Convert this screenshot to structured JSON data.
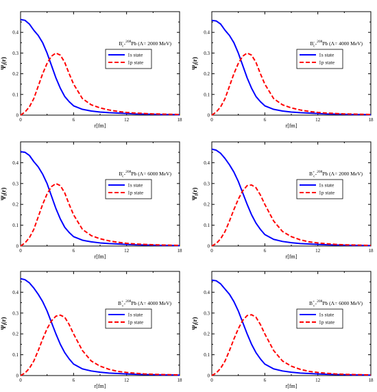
{
  "colors": {
    "s1": "#0000ff",
    "p1": "#ff0000",
    "axis": "#000000",
    "background": "#ffffff"
  },
  "chart_data": [
    {
      "type": "line",
      "title_parts": {
        "base": "B",
        "charge": "-",
        "sub": "c",
        "dash": "-",
        "mass": "208",
        "element": "Pb",
        "cutoff": "(Λ= 2000 MeV)"
      },
      "xlabel": "r[fm]",
      "ylabel": "Ψ_l(r)",
      "ylabel_main": "Ψ",
      "ylabel_sub": "l",
      "ylabel_arg": "(r)",
      "xlim": [
        0,
        18
      ],
      "ylim": [
        0,
        0.5
      ],
      "xticks": [
        0,
        6,
        12,
        18
      ],
      "yticks": [
        0,
        0.1,
        0.2,
        0.3,
        0.4
      ],
      "xtick_labels": [
        "0",
        "6",
        "12",
        "18"
      ],
      "ytick_labels": [
        "0",
        "0.1",
        "0.2",
        "0.3",
        "0.4"
      ],
      "legend": "upper-right",
      "series": [
        {
          "name": "1s state",
          "color": "#0000ff",
          "style": "solid",
          "x": [
            0,
            0.5,
            1,
            1.5,
            2,
            2.5,
            3,
            3.5,
            4,
            4.5,
            5,
            5.5,
            6,
            7,
            8,
            9,
            10,
            11,
            12,
            13,
            14,
            15,
            16,
            17,
            18
          ],
          "y": [
            0.462,
            0.458,
            0.44,
            0.41,
            0.385,
            0.35,
            0.3,
            0.24,
            0.18,
            0.13,
            0.09,
            0.065,
            0.045,
            0.028,
            0.02,
            0.015,
            0.012,
            0.01,
            0.008,
            0.006,
            0.005,
            0.004,
            0.003,
            0.003,
            0.002
          ]
        },
        {
          "name": "1p state",
          "color": "#ff0000",
          "style": "dashed",
          "x": [
            0,
            0.5,
            1,
            1.5,
            2,
            2.5,
            3,
            3.5,
            4,
            4.5,
            5,
            5.5,
            6,
            7,
            8,
            9,
            10,
            11,
            12,
            13,
            14,
            15,
            16,
            17,
            18
          ],
          "y": [
            0,
            0.015,
            0.04,
            0.08,
            0.14,
            0.2,
            0.25,
            0.285,
            0.3,
            0.29,
            0.255,
            0.2,
            0.15,
            0.08,
            0.05,
            0.035,
            0.025,
            0.018,
            0.013,
            0.01,
            0.008,
            0.006,
            0.005,
            0.004,
            0.003
          ]
        }
      ]
    },
    {
      "type": "line",
      "title_parts": {
        "base": "B",
        "charge": "-",
        "sub": "c",
        "dash": "-",
        "mass": "208",
        "element": "Pb",
        "cutoff": "(Λ= 4000 MeV)"
      },
      "xlabel": "r[fm]",
      "ylabel": "Ψ_l(r)",
      "ylabel_main": "Ψ",
      "ylabel_sub": "l",
      "ylabel_arg": "(r)",
      "xlim": [
        0,
        18
      ],
      "ylim": [
        0,
        0.5
      ],
      "xticks": [
        0,
        6,
        12,
        18
      ],
      "yticks": [
        0,
        0.1,
        0.2,
        0.3,
        0.4
      ],
      "xtick_labels": [
        "0",
        "6",
        "12",
        "18"
      ],
      "ytick_labels": [
        "0",
        "0.1",
        "0.2",
        "0.3",
        "0.4"
      ],
      "legend": "upper-right",
      "series": [
        {
          "name": "1s state",
          "color": "#0000ff",
          "style": "solid",
          "x": [
            0,
            0.5,
            1,
            1.5,
            2,
            2.5,
            3,
            3.5,
            4,
            4.5,
            5,
            5.5,
            6,
            7,
            8,
            9,
            10,
            11,
            12,
            13,
            14,
            15,
            16,
            17,
            18
          ],
          "y": [
            0.458,
            0.455,
            0.44,
            0.41,
            0.385,
            0.35,
            0.3,
            0.24,
            0.18,
            0.13,
            0.09,
            0.065,
            0.045,
            0.028,
            0.02,
            0.015,
            0.012,
            0.01,
            0.008,
            0.006,
            0.005,
            0.004,
            0.003,
            0.003,
            0.002
          ]
        },
        {
          "name": "1p state",
          "color": "#ff0000",
          "style": "dashed",
          "x": [
            0,
            0.5,
            1,
            1.5,
            2,
            2.5,
            3,
            3.5,
            4,
            4.5,
            5,
            5.5,
            6,
            7,
            8,
            9,
            10,
            11,
            12,
            13,
            14,
            15,
            16,
            17,
            18
          ],
          "y": [
            0,
            0.015,
            0.04,
            0.08,
            0.14,
            0.2,
            0.25,
            0.285,
            0.3,
            0.29,
            0.255,
            0.2,
            0.15,
            0.08,
            0.05,
            0.035,
            0.025,
            0.018,
            0.013,
            0.01,
            0.008,
            0.006,
            0.005,
            0.004,
            0.003
          ]
        }
      ]
    },
    {
      "type": "line",
      "title_parts": {
        "base": "B",
        "charge": "-",
        "sub": "c",
        "dash": "-",
        "mass": "208",
        "element": "Pb",
        "cutoff": "(Λ= 6000 MeV)"
      },
      "xlabel": "r[fm]",
      "ylabel": "Ψ_l(r)",
      "ylabel_main": "Ψ",
      "ylabel_sub": "l",
      "ylabel_arg": "(r)",
      "xlim": [
        0,
        18
      ],
      "ylim": [
        0,
        0.5
      ],
      "xticks": [
        0,
        6,
        12,
        18
      ],
      "yticks": [
        0,
        0.1,
        0.2,
        0.3,
        0.4
      ],
      "xtick_labels": [
        "0",
        "6",
        "12",
        "18"
      ],
      "ytick_labels": [
        "0",
        "0.1",
        "0.2",
        "0.3",
        "0.4"
      ],
      "legend": "upper-right",
      "series": [
        {
          "name": "1s state",
          "color": "#0000ff",
          "style": "solid",
          "x": [
            0,
            0.5,
            1,
            1.5,
            2,
            2.5,
            3,
            3.5,
            4,
            4.5,
            5,
            5.5,
            6,
            7,
            8,
            9,
            10,
            11,
            12,
            13,
            14,
            15,
            16,
            17,
            18
          ],
          "y": [
            0.453,
            0.45,
            0.435,
            0.405,
            0.38,
            0.345,
            0.3,
            0.24,
            0.18,
            0.13,
            0.09,
            0.065,
            0.045,
            0.028,
            0.02,
            0.015,
            0.012,
            0.01,
            0.008,
            0.006,
            0.005,
            0.004,
            0.003,
            0.003,
            0.002
          ]
        },
        {
          "name": "1p state",
          "color": "#ff0000",
          "style": "dashed",
          "x": [
            0,
            0.5,
            1,
            1.5,
            2,
            2.5,
            3,
            3.5,
            4,
            4.5,
            5,
            5.5,
            6,
            7,
            8,
            9,
            10,
            11,
            12,
            13,
            14,
            15,
            16,
            17,
            18
          ],
          "y": [
            0,
            0.015,
            0.04,
            0.08,
            0.14,
            0.2,
            0.25,
            0.285,
            0.3,
            0.29,
            0.255,
            0.2,
            0.15,
            0.08,
            0.05,
            0.035,
            0.025,
            0.018,
            0.013,
            0.01,
            0.008,
            0.006,
            0.005,
            0.004,
            0.003
          ]
        }
      ]
    },
    {
      "type": "line",
      "title_parts": {
        "base": "B",
        "charge": "+",
        "sub": "c",
        "dash": "-",
        "mass": "208",
        "element": "Pb",
        "cutoff": "(Λ= 2000 MeV)"
      },
      "xlabel": "r[fm]",
      "ylabel": "Ψ_l(r)",
      "ylabel_main": "Ψ",
      "ylabel_sub": "l",
      "ylabel_arg": "(r)",
      "xlim": [
        0,
        18
      ],
      "ylim": [
        0,
        0.5
      ],
      "xticks": [
        0,
        6,
        12,
        18
      ],
      "yticks": [
        0,
        0.1,
        0.2,
        0.3,
        0.4
      ],
      "xtick_labels": [
        "0",
        "6",
        "12",
        "18"
      ],
      "ytick_labels": [
        "0",
        "0.1",
        "0.2",
        "0.3",
        "0.4"
      ],
      "legend": "upper-right",
      "series": [
        {
          "name": "1s state",
          "color": "#0000ff",
          "style": "solid",
          "x": [
            0,
            0.5,
            1,
            1.5,
            2,
            2.5,
            3,
            3.5,
            4,
            4.5,
            5,
            5.5,
            6,
            7,
            8,
            9,
            10,
            11,
            12,
            13,
            14,
            15,
            16,
            17,
            18
          ],
          "y": [
            0.465,
            0.46,
            0.445,
            0.42,
            0.39,
            0.355,
            0.31,
            0.255,
            0.2,
            0.15,
            0.11,
            0.08,
            0.055,
            0.032,
            0.022,
            0.016,
            0.012,
            0.01,
            0.008,
            0.006,
            0.005,
            0.004,
            0.003,
            0.003,
            0.002
          ]
        },
        {
          "name": "1p state",
          "color": "#ff0000",
          "style": "dashed",
          "x": [
            0,
            0.5,
            1,
            1.5,
            2,
            2.5,
            3,
            3.5,
            4,
            4.5,
            5,
            5.5,
            6,
            7,
            8,
            9,
            10,
            11,
            12,
            13,
            14,
            15,
            16,
            17,
            18
          ],
          "y": [
            0,
            0.012,
            0.035,
            0.07,
            0.12,
            0.175,
            0.225,
            0.265,
            0.29,
            0.293,
            0.28,
            0.245,
            0.2,
            0.12,
            0.07,
            0.045,
            0.03,
            0.02,
            0.015,
            0.011,
            0.008,
            0.006,
            0.005,
            0.004,
            0.003
          ]
        }
      ]
    },
    {
      "type": "line",
      "title_parts": {
        "base": "B",
        "charge": "+",
        "sub": "c",
        "dash": "-",
        "mass": "208",
        "element": "Pb",
        "cutoff": "(Λ= 4000 MeV)"
      },
      "xlabel": "r[fm]",
      "ylabel": "Ψ_l(r)",
      "ylabel_main": "Ψ",
      "ylabel_sub": "l",
      "ylabel_arg": "(r)",
      "xlim": [
        0,
        18
      ],
      "ylim": [
        0,
        0.5
      ],
      "xticks": [
        0,
        6,
        12,
        18
      ],
      "yticks": [
        0,
        0.1,
        0.2,
        0.3,
        0.4
      ],
      "xtick_labels": [
        "0",
        "6",
        "12",
        "18"
      ],
      "ytick_labels": [
        "0",
        "0.1",
        "0.2",
        "0.3",
        "0.4"
      ],
      "legend": "upper-right",
      "series": [
        {
          "name": "1s state",
          "color": "#0000ff",
          "style": "solid",
          "x": [
            0,
            0.5,
            1,
            1.5,
            2,
            2.5,
            3,
            3.5,
            4,
            4.5,
            5,
            5.5,
            6,
            7,
            8,
            9,
            10,
            11,
            12,
            13,
            14,
            15,
            16,
            17,
            18
          ],
          "y": [
            0.465,
            0.46,
            0.445,
            0.42,
            0.39,
            0.355,
            0.31,
            0.255,
            0.2,
            0.15,
            0.11,
            0.08,
            0.055,
            0.032,
            0.022,
            0.016,
            0.012,
            0.01,
            0.008,
            0.006,
            0.005,
            0.004,
            0.003,
            0.003,
            0.002
          ]
        },
        {
          "name": "1p state",
          "color": "#ff0000",
          "style": "dashed",
          "x": [
            0,
            0.5,
            1,
            1.5,
            2,
            2.5,
            3,
            3.5,
            4,
            4.5,
            5,
            5.5,
            6,
            7,
            8,
            9,
            10,
            11,
            12,
            13,
            14,
            15,
            16,
            17,
            18
          ],
          "y": [
            0,
            0.012,
            0.035,
            0.07,
            0.12,
            0.175,
            0.225,
            0.262,
            0.285,
            0.29,
            0.28,
            0.245,
            0.2,
            0.12,
            0.07,
            0.045,
            0.03,
            0.02,
            0.015,
            0.011,
            0.008,
            0.006,
            0.005,
            0.004,
            0.003
          ]
        }
      ]
    },
    {
      "type": "line",
      "title_parts": {
        "base": "B",
        "charge": "+",
        "sub": "c",
        "dash": "-",
        "mass": "208",
        "element": "Pb",
        "cutoff": "(Λ= 6000 MeV)"
      },
      "xlabel": "r[fm]",
      "ylabel": "Ψ_l(r)",
      "ylabel_main": "Ψ",
      "ylabel_sub": "l",
      "ylabel_arg": "(r)",
      "xlim": [
        0,
        18
      ],
      "ylim": [
        0,
        0.5
      ],
      "xticks": [
        0,
        6,
        12,
        18
      ],
      "yticks": [
        0,
        0.1,
        0.2,
        0.3,
        0.4
      ],
      "xtick_labels": [
        "0",
        "6",
        "12",
        "18"
      ],
      "ytick_labels": [
        "0",
        "0.1",
        "0.2",
        "0.3",
        "0.4"
      ],
      "legend": "upper-right",
      "series": [
        {
          "name": "1s state",
          "color": "#0000ff",
          "style": "solid",
          "x": [
            0,
            0.5,
            1,
            1.5,
            2,
            2.5,
            3,
            3.5,
            4,
            4.5,
            5,
            5.5,
            6,
            7,
            8,
            9,
            10,
            11,
            12,
            13,
            14,
            15,
            16,
            17,
            18
          ],
          "y": [
            0.458,
            0.455,
            0.44,
            0.415,
            0.39,
            0.355,
            0.31,
            0.255,
            0.2,
            0.15,
            0.11,
            0.08,
            0.055,
            0.032,
            0.022,
            0.016,
            0.012,
            0.01,
            0.008,
            0.006,
            0.005,
            0.004,
            0.003,
            0.003,
            0.002
          ]
        },
        {
          "name": "1p state",
          "color": "#ff0000",
          "style": "dashed",
          "x": [
            0,
            0.5,
            1,
            1.5,
            2,
            2.5,
            3,
            3.5,
            4,
            4.5,
            5,
            5.5,
            6,
            7,
            8,
            9,
            10,
            11,
            12,
            13,
            14,
            15,
            16,
            17,
            18
          ],
          "y": [
            0,
            0.012,
            0.035,
            0.07,
            0.12,
            0.175,
            0.225,
            0.265,
            0.288,
            0.292,
            0.28,
            0.245,
            0.2,
            0.12,
            0.07,
            0.045,
            0.03,
            0.02,
            0.015,
            0.011,
            0.008,
            0.006,
            0.005,
            0.004,
            0.003
          ]
        }
      ]
    }
  ]
}
